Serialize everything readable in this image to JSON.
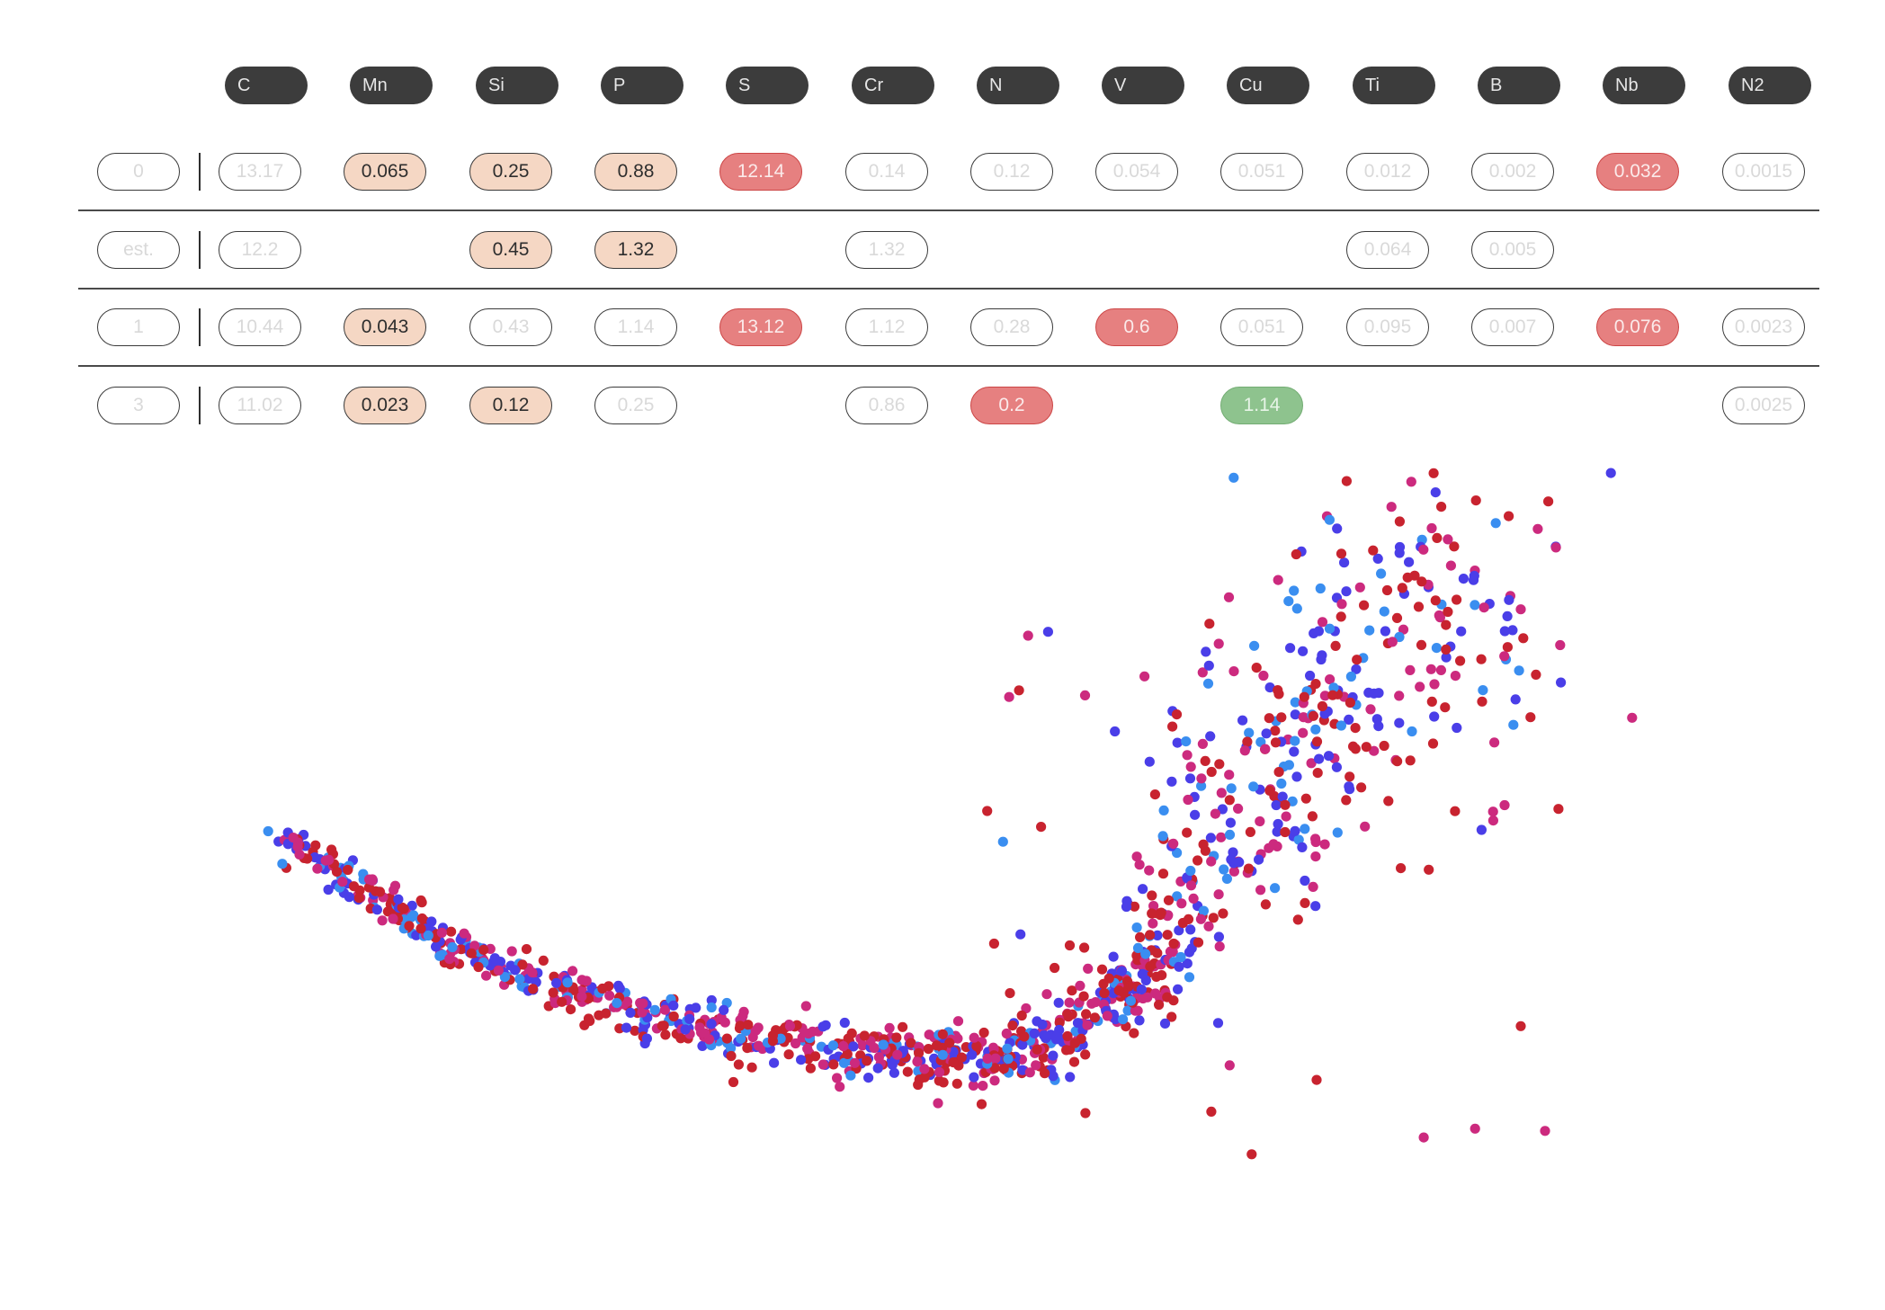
{
  "table": {
    "columns": [
      "C",
      "Mn",
      "Si",
      "P",
      "S",
      "Cr",
      "N",
      "V",
      "Cu",
      "Ti",
      "B",
      "Nb",
      "N2"
    ],
    "rows": [
      {
        "label": "0",
        "cells": [
          {
            "value": "13.17",
            "style": "plain"
          },
          {
            "value": "0.065",
            "style": "peach"
          },
          {
            "value": "0.25",
            "style": "peach"
          },
          {
            "value": "0.88",
            "style": "peach"
          },
          {
            "value": "12.14",
            "style": "red"
          },
          {
            "value": "0.14",
            "style": "plain"
          },
          {
            "value": "0.12",
            "style": "plain"
          },
          {
            "value": "0.054",
            "style": "plain"
          },
          {
            "value": "0.051",
            "style": "plain"
          },
          {
            "value": "0.012",
            "style": "plain"
          },
          {
            "value": "0.002",
            "style": "plain"
          },
          {
            "value": "0.032",
            "style": "red"
          },
          {
            "value": "0.0015",
            "style": "plain"
          }
        ]
      },
      {
        "label": "est.",
        "cells": [
          {
            "value": "12.2",
            "style": "plain"
          },
          null,
          {
            "value": "0.45",
            "style": "peach"
          },
          {
            "value": "1.32",
            "style": "peach"
          },
          null,
          {
            "value": "1.32",
            "style": "plain"
          },
          null,
          null,
          null,
          {
            "value": "0.064",
            "style": "plain"
          },
          {
            "value": "0.005",
            "style": "plain"
          },
          null,
          null
        ]
      },
      {
        "label": "1",
        "cells": [
          {
            "value": "10.44",
            "style": "plain"
          },
          {
            "value": "0.043",
            "style": "peach"
          },
          {
            "value": "0.43",
            "style": "plain"
          },
          {
            "value": "1.14",
            "style": "plain"
          },
          {
            "value": "13.12",
            "style": "red"
          },
          {
            "value": "1.12",
            "style": "plain"
          },
          {
            "value": "0.28",
            "style": "plain"
          },
          {
            "value": "0.6",
            "style": "red"
          },
          {
            "value": "0.051",
            "style": "plain"
          },
          {
            "value": "0.095",
            "style": "plain"
          },
          {
            "value": "0.007",
            "style": "plain"
          },
          {
            "value": "0.076",
            "style": "red"
          },
          {
            "value": "0.0023",
            "style": "plain"
          }
        ]
      },
      {
        "label": "3",
        "cells": [
          {
            "value": "11.02",
            "style": "plain"
          },
          {
            "value": "0.023",
            "style": "peach"
          },
          {
            "value": "0.12",
            "style": "peach"
          },
          {
            "value": "0.25",
            "style": "plain"
          },
          null,
          {
            "value": "0.86",
            "style": "plain"
          },
          {
            "value": "0.2",
            "style": "red"
          },
          null,
          {
            "value": "1.14",
            "style": "green"
          },
          null,
          null,
          null,
          {
            "value": "0.0025",
            "style": "plain"
          }
        ]
      }
    ]
  },
  "colors": {
    "header_pill": "#3c3c3c",
    "peach": "#f5d7c4",
    "red": "#e68080",
    "green": "#8ec38e",
    "point_palette": [
      "#c8232f",
      "#cc2a7e",
      "#4a3ee8",
      "#3a8ef0"
    ]
  },
  "scatter": {
    "type": "scatter",
    "description_free": true,
    "point_colors": [
      "#c8232f",
      "#cc2a7e",
      "#4a3ee8",
      "#3a8ef0"
    ]
  }
}
